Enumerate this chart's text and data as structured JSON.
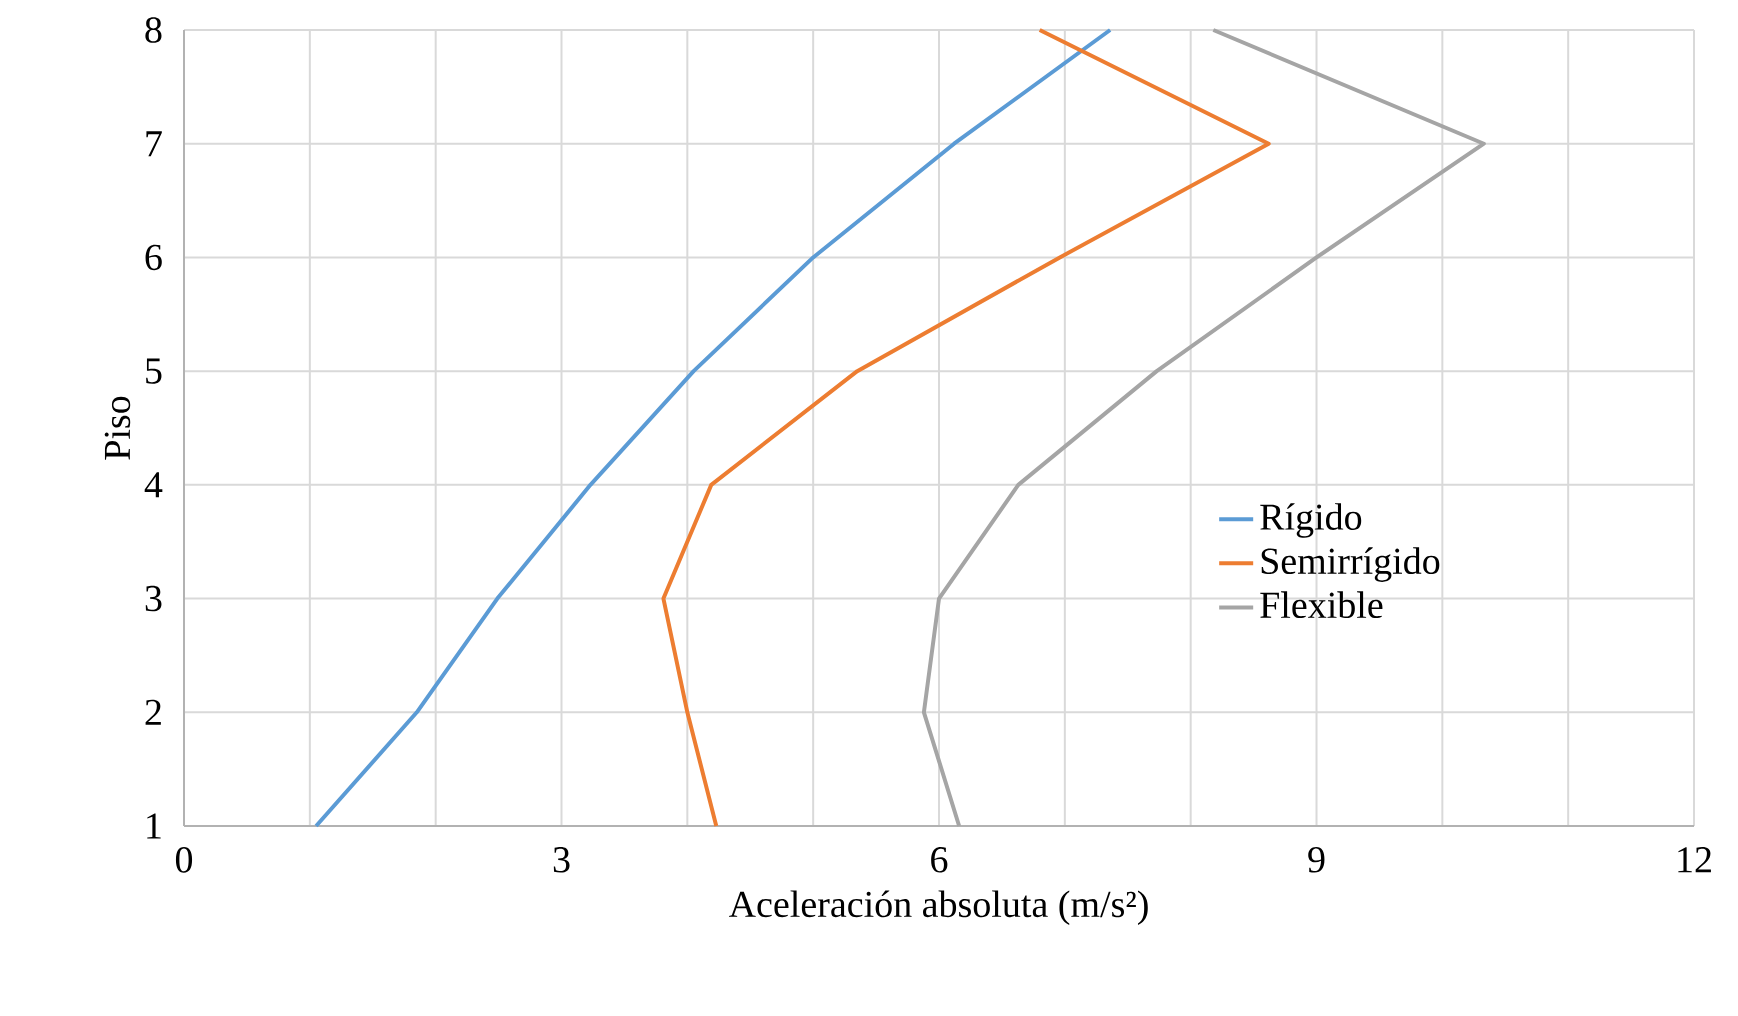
{
  "chart_data": {
    "type": "line",
    "xlabel": "Aceleración absoluta (m/s²)",
    "ylabel": "Piso",
    "xlim": [
      0,
      12
    ],
    "ylim": [
      1,
      8
    ],
    "xticks": [
      0,
      {
        "value": 1,
        "label": null
      },
      {
        "value": 2,
        "label": null
      },
      3,
      {
        "value": 4,
        "label": null
      },
      {
        "value": 5,
        "label": null
      },
      6,
      {
        "value": 7,
        "label": null
      },
      {
        "value": 8,
        "label": null
      },
      9,
      {
        "value": 10,
        "label": null
      },
      {
        "value": 11,
        "label": null
      },
      12
    ],
    "yticks": [
      1,
      2,
      3,
      4,
      5,
      6,
      7,
      8
    ],
    "grid": true,
    "legend": "right",
    "marker": "none",
    "line_style": "solid",
    "series": [
      {
        "name": "Rígido",
        "color": "#5b9bd5",
        "x": [
          1.05,
          1.85,
          2.49,
          3.23,
          4.05,
          5.0,
          6.12,
          7.36
        ],
        "values": [
          1,
          2,
          3,
          4,
          5,
          6,
          7,
          8
        ]
      },
      {
        "name": "Semirrígido",
        "color": "#ed7d31",
        "x": [
          4.23,
          4.0,
          3.81,
          4.19,
          5.35,
          6.96,
          8.62,
          6.8
        ],
        "values": [
          1,
          2,
          3,
          4,
          5,
          6,
          7,
          8
        ]
      },
      {
        "name": "Flexible",
        "color": "#a5a5a5",
        "x": [
          6.16,
          5.88,
          6.0,
          6.63,
          7.73,
          9.0,
          10.33,
          8.18
        ],
        "values": [
          1,
          2,
          3,
          4,
          5,
          6,
          7,
          8
        ]
      }
    ]
  }
}
